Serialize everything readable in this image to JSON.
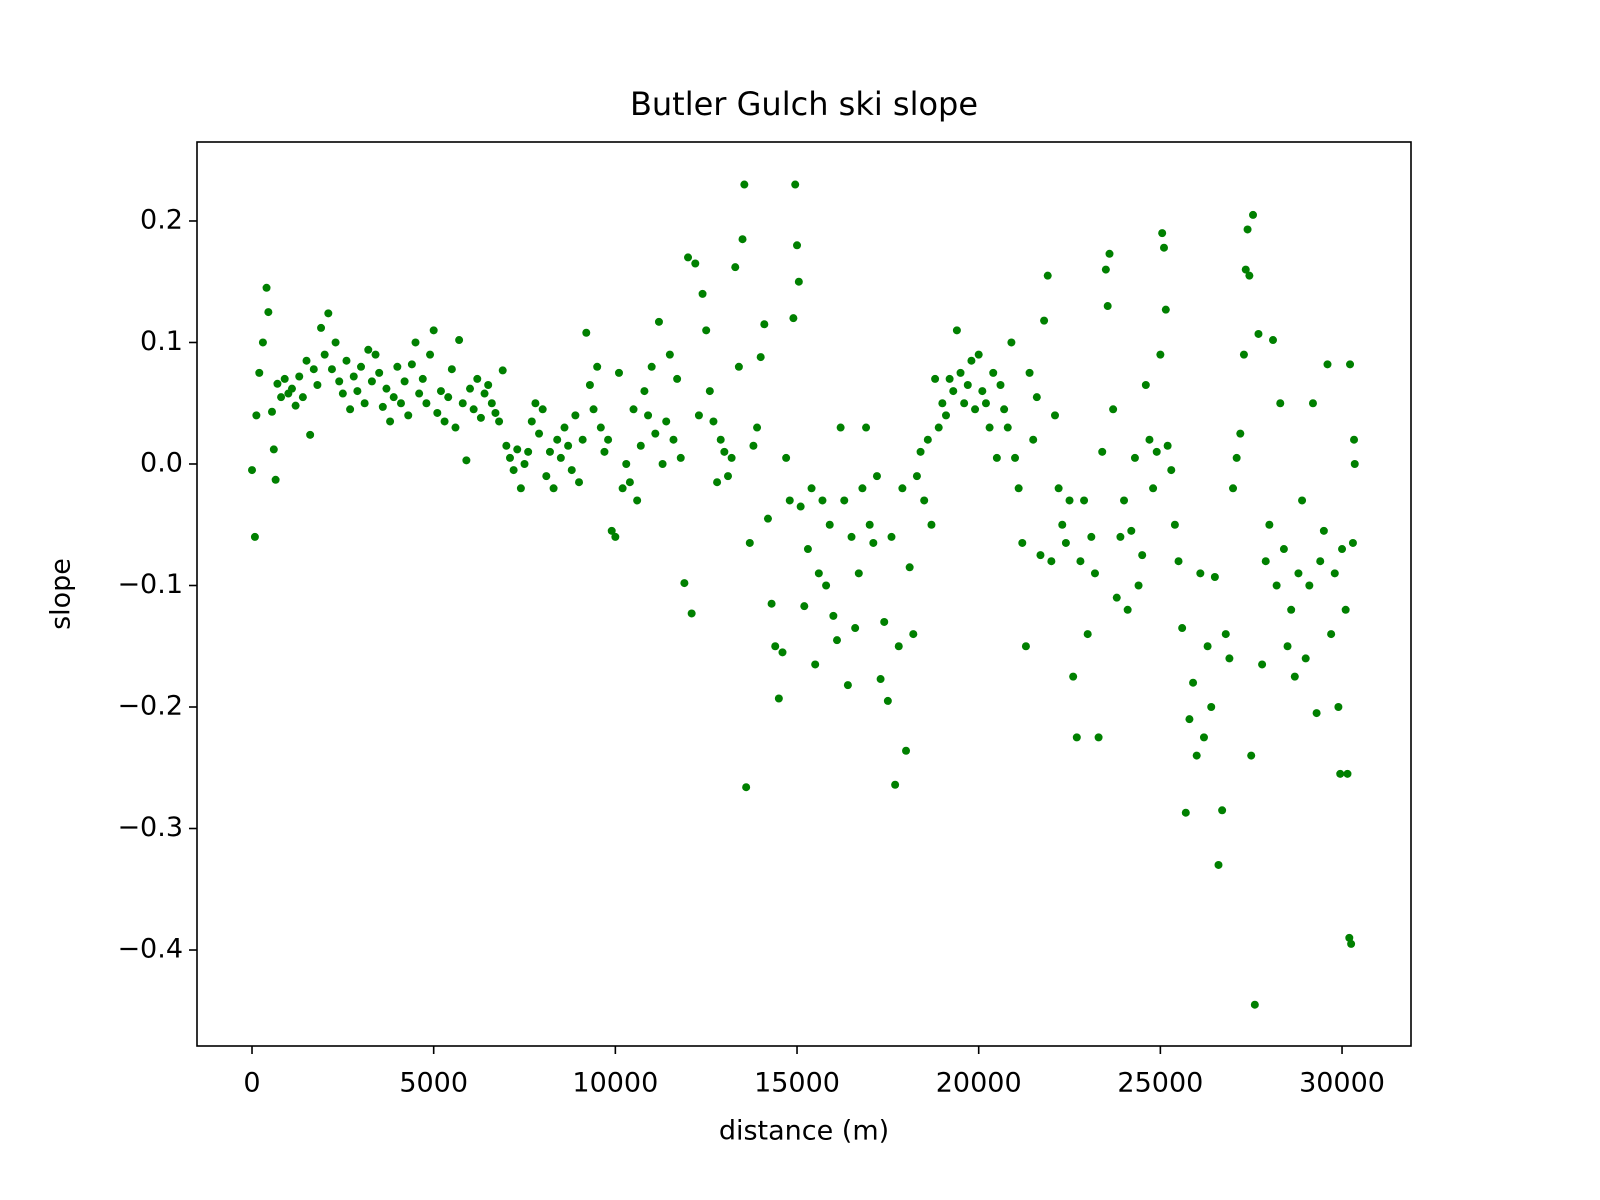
{
  "chart_data": {
    "type": "scatter",
    "title": "Butler Gulch ski slope",
    "x_label": "distance (m)",
    "y_label": "slope",
    "color": "#008000",
    "xlim": [
      -1514,
      31898
    ],
    "ylim": [
      -0.479,
      0.265
    ],
    "xticks": [
      0,
      5000,
      10000,
      15000,
      20000,
      25000,
      30000
    ],
    "yticks": [
      {
        "value": -0.4,
        "label": "−0.4"
      },
      {
        "value": -0.3,
        "label": "−0.3"
      },
      {
        "value": -0.2,
        "label": "−0.2"
      },
      {
        "value": -0.1,
        "label": "−0.1"
      },
      {
        "value": 0,
        "label": "0.0"
      },
      0.1,
      0.2
    ],
    "x": [
      0,
      80,
      120,
      200,
      300,
      400,
      450,
      550,
      600,
      650,
      700,
      800,
      900,
      1000,
      1100,
      1200,
      1300,
      1400,
      1500,
      1600,
      1700,
      1800,
      1900,
      2000,
      2100,
      2200,
      2300,
      2400,
      2500,
      2600,
      2700,
      2800,
      2900,
      3000,
      3100,
      3200,
      3300,
      3400,
      3500,
      3600,
      3700,
      3800,
      3900,
      4000,
      4100,
      4200,
      4300,
      4400,
      4500,
      4600,
      4700,
      4800,
      4900,
      5000,
      5100,
      5200,
      5300,
      5400,
      5500,
      5600,
      5700,
      5800,
      5900,
      6000,
      6100,
      6200,
      6300,
      6400,
      6500,
      6600,
      6700,
      6800,
      6900,
      7000,
      7100,
      7200,
      7300,
      7400,
      7500,
      7600,
      7700,
      7800,
      7900,
      8000,
      8100,
      8200,
      8300,
      8400,
      8500,
      8600,
      8700,
      8800,
      8900,
      9000,
      9100,
      9200,
      9300,
      9400,
      9500,
      9600,
      9700,
      9800,
      9900,
      10000,
      10100,
      10200,
      10300,
      10400,
      10500,
      10600,
      10700,
      10800,
      10900,
      11000,
      11100,
      11200,
      11300,
      11400,
      11500,
      11600,
      11700,
      11800,
      11900,
      12000,
      12100,
      12200,
      12300,
      12400,
      12500,
      12600,
      12700,
      12800,
      12900,
      13000,
      13100,
      13200,
      13300,
      13400,
      13500,
      13550,
      13600,
      13700,
      13800,
      13900,
      14000,
      14100,
      14200,
      14300,
      14400,
      14500,
      14600,
      14700,
      14800,
      14900,
      14950,
      15000,
      15050,
      15100,
      15200,
      15300,
      15400,
      15500,
      15600,
      15700,
      15800,
      15900,
      16000,
      16100,
      16200,
      16300,
      16400,
      16500,
      16600,
      16700,
      16800,
      16900,
      17000,
      17100,
      17200,
      17300,
      17400,
      17500,
      17600,
      17700,
      17800,
      17900,
      18000,
      18100,
      18200,
      18300,
      18400,
      18500,
      18600,
      18700,
      18800,
      18900,
      19000,
      19100,
      19200,
      19300,
      19400,
      19500,
      19600,
      19700,
      19800,
      19900,
      20000,
      20100,
      20200,
      20300,
      20400,
      20500,
      20600,
      20700,
      20800,
      20900,
      21000,
      21100,
      21200,
      21300,
      21400,
      21500,
      21600,
      21700,
      21800,
      21900,
      22000,
      22100,
      22200,
      22300,
      22400,
      22500,
      22600,
      22700,
      22800,
      22900,
      23000,
      23100,
      23200,
      23300,
      23400,
      23500,
      23550,
      23600,
      23700,
      23800,
      23900,
      24000,
      24100,
      24200,
      24300,
      24400,
      24500,
      24600,
      24700,
      24800,
      24900,
      25000,
      25050,
      25100,
      25150,
      25200,
      25300,
      25400,
      25500,
      25600,
      25700,
      25800,
      25900,
      26000,
      26100,
      26200,
      26300,
      26400,
      26500,
      26600,
      26700,
      26800,
      26900,
      27000,
      27100,
      27200,
      27300,
      27350,
      27400,
      27450,
      27500,
      27550,
      27600,
      27700,
      27800,
      27900,
      28000,
      28100,
      28200,
      28300,
      28400,
      28500,
      28600,
      28700,
      28800,
      28900,
      29000,
      29100,
      29200,
      29300,
      29400,
      29500,
      29600,
      29700,
      29800,
      29900,
      29950,
      30000,
      30100,
      30150,
      30200,
      30220,
      30250,
      30300,
      30330,
      30350
    ],
    "values": [
      -0.005,
      -0.06,
      0.04,
      0.075,
      0.1,
      0.145,
      0.125,
      0.043,
      0.012,
      -0.013,
      0.066,
      0.055,
      0.07,
      0.058,
      0.062,
      0.048,
      0.072,
      0.055,
      0.085,
      0.024,
      0.078,
      0.065,
      0.112,
      0.09,
      0.124,
      0.078,
      0.1,
      0.068,
      0.058,
      0.085,
      0.045,
      0.072,
      0.06,
      0.08,
      0.05,
      0.094,
      0.068,
      0.09,
      0.075,
      0.047,
      0.062,
      0.035,
      0.055,
      0.08,
      0.05,
      0.068,
      0.04,
      0.082,
      0.1,
      0.058,
      0.07,
      0.05,
      0.09,
      0.11,
      0.042,
      0.06,
      0.035,
      0.055,
      0.078,
      0.03,
      0.102,
      0.05,
      0.003,
      0.062,
      0.045,
      0.07,
      0.038,
      0.058,
      0.065,
      0.05,
      0.042,
      0.035,
      0.077,
      0.015,
      0.005,
      -0.005,
      0.012,
      -0.02,
      0.0,
      0.01,
      0.035,
      0.05,
      0.025,
      0.045,
      -0.01,
      0.01,
      -0.02,
      0.02,
      0.005,
      0.03,
      0.015,
      -0.005,
      0.04,
      -0.015,
      0.02,
      0.108,
      0.065,
      0.045,
      0.08,
      0.03,
      0.01,
      0.02,
      -0.055,
      -0.06,
      0.075,
      -0.02,
      0.0,
      -0.015,
      0.045,
      -0.03,
      0.015,
      0.06,
      0.04,
      0.08,
      0.025,
      0.117,
      0.0,
      0.035,
      0.09,
      0.02,
      0.07,
      0.005,
      -0.098,
      0.17,
      -0.123,
      0.165,
      0.04,
      0.14,
      0.11,
      0.06,
      0.035,
      -0.015,
      0.02,
      0.01,
      -0.01,
      0.005,
      0.162,
      0.08,
      0.185,
      0.23,
      -0.266,
      -0.065,
      0.015,
      0.03,
      0.088,
      0.115,
      -0.045,
      -0.115,
      -0.15,
      -0.193,
      -0.155,
      0.005,
      -0.03,
      0.12,
      0.23,
      0.18,
      0.15,
      -0.035,
      -0.117,
      -0.07,
      -0.02,
      -0.165,
      -0.09,
      -0.03,
      -0.1,
      -0.05,
      -0.125,
      -0.145,
      0.03,
      -0.03,
      -0.182,
      -0.06,
      -0.135,
      -0.09,
      -0.02,
      0.03,
      -0.05,
      -0.065,
      -0.01,
      -0.177,
      -0.13,
      -0.195,
      -0.06,
      -0.264,
      -0.15,
      -0.02,
      -0.236,
      -0.085,
      -0.14,
      -0.01,
      0.01,
      -0.03,
      0.02,
      -0.05,
      0.07,
      0.03,
      0.05,
      0.04,
      0.07,
      0.06,
      0.11,
      0.075,
      0.05,
      0.065,
      0.085,
      0.045,
      0.09,
      0.06,
      0.05,
      0.03,
      0.075,
      0.005,
      0.065,
      0.045,
      0.03,
      0.1,
      0.005,
      -0.02,
      -0.065,
      -0.15,
      0.075,
      0.02,
      0.055,
      -0.075,
      0.118,
      0.155,
      -0.08,
      0.04,
      -0.02,
      -0.05,
      -0.065,
      -0.03,
      -0.175,
      -0.225,
      -0.08,
      -0.03,
      -0.14,
      -0.06,
      -0.09,
      -0.225,
      0.01,
      0.16,
      0.13,
      0.173,
      0.045,
      -0.11,
      -0.06,
      -0.03,
      -0.12,
      -0.055,
      0.005,
      -0.1,
      -0.075,
      0.065,
      0.02,
      -0.02,
      0.01,
      0.09,
      0.19,
      0.178,
      0.127,
      0.015,
      -0.005,
      -0.05,
      -0.08,
      -0.135,
      -0.287,
      -0.21,
      -0.18,
      -0.24,
      -0.09,
      -0.225,
      -0.15,
      -0.2,
      -0.093,
      -0.33,
      -0.285,
      -0.14,
      -0.16,
      -0.02,
      0.005,
      0.025,
      0.09,
      0.16,
      0.193,
      0.155,
      -0.24,
      0.205,
      -0.445,
      0.107,
      -0.165,
      -0.08,
      -0.05,
      0.102,
      -0.1,
      0.05,
      -0.07,
      -0.15,
      -0.12,
      -0.175,
      -0.09,
      -0.03,
      -0.16,
      -0.1,
      0.05,
      -0.205,
      -0.08,
      -0.055,
      0.082,
      -0.14,
      -0.09,
      -0.2,
      -0.255,
      -0.07,
      -0.12,
      -0.255,
      -0.39,
      0.082,
      -0.395,
      -0.065,
      0.02,
      0.0
    ]
  }
}
